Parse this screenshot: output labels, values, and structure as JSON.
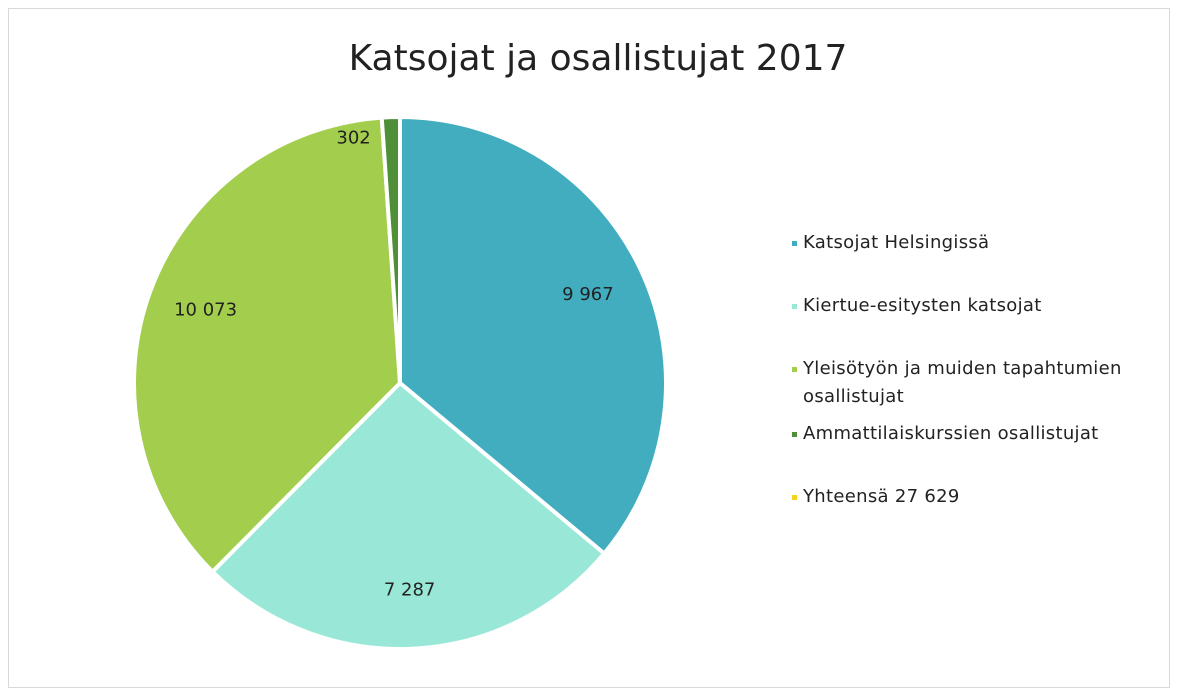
{
  "chart_data": {
    "type": "pie",
    "title": "Katsojat ja osallistujat 2017",
    "categories": [
      "Katsojat Helsingissä",
      "Kiertue-esitysten katsojat",
      "Yleisötyön ja muiden tapahtumien osallistujat",
      "Ammattilaiskurssien osallistujat",
      "Yhteensä 27 629"
    ],
    "values": [
      9967,
      7287,
      10073,
      302,
      null
    ],
    "value_labels": [
      "9 967",
      "7 287",
      "10 073",
      "302",
      null
    ],
    "colors": [
      "#41adbf",
      "#99e8d7",
      "#a3cd4c",
      "#4e8f38",
      "#f2d51a"
    ],
    "legend": "right"
  }
}
